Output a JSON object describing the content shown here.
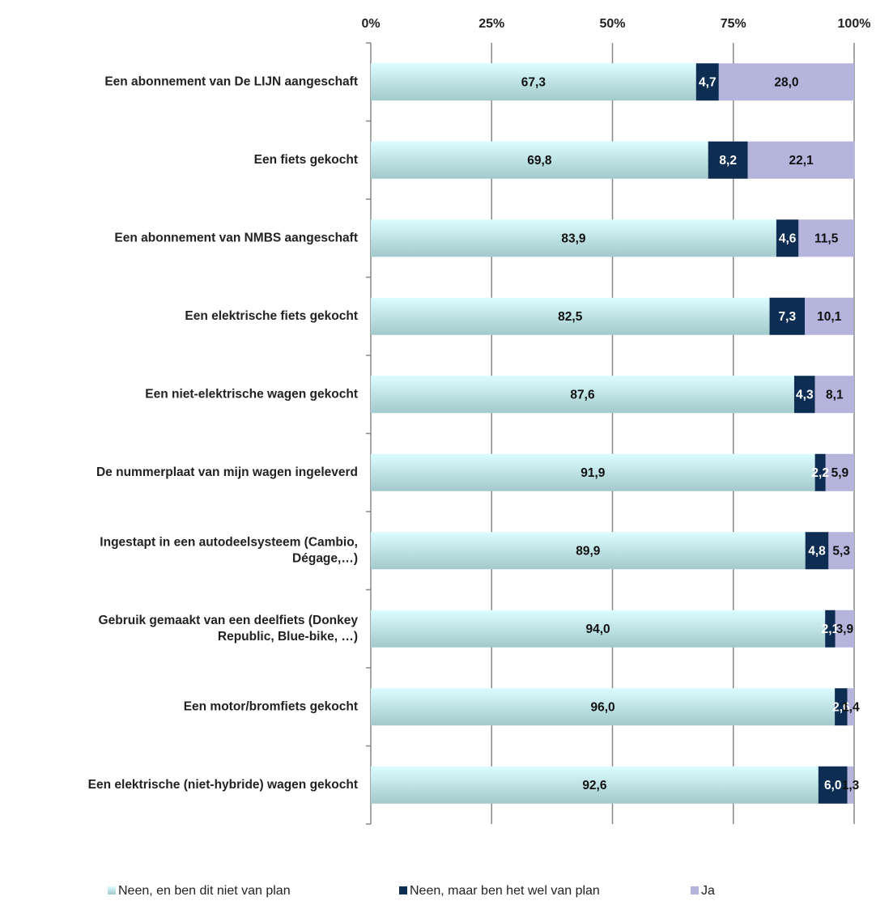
{
  "chart_data": {
    "type": "stacked-barh",
    "categories": [
      "Een abonnement van De LIJN aangeschaft",
      "Een fiets gekocht",
      "Een abonnement van NMBS aangeschaft",
      "Een elektrische fiets gekocht",
      "Een niet-elektrische wagen gekocht",
      "De nummerplaat van mijn wagen ingeleverd",
      "Ingestapt in een autodeelsysteem (Cambio,\nDégage,…)",
      "Gebruik gemaakt van een deelfiets (Donkey\nRepublic, Blue-bike, …)",
      "Een motor/bromfiets gekocht",
      "Een elektrische (niet-hybride) wagen gekocht"
    ],
    "series": [
      {
        "name": "Neen, en ben dit niet van plan",
        "color": "#b8e3e6",
        "values": [
          67.3,
          69.8,
          83.9,
          82.5,
          87.6,
          91.9,
          89.9,
          94.0,
          96.0,
          92.6
        ],
        "value_labels": [
          "67,3",
          "69,8",
          "83,9",
          "82,5",
          "87,6",
          "91,9",
          "89,9",
          "94,0",
          "96,0",
          "92,6"
        ]
      },
      {
        "name": "Neen, maar ben het wel van plan",
        "color": "#0d2d52",
        "values": [
          4.7,
          8.2,
          4.6,
          7.3,
          4.3,
          2.2,
          4.8,
          2.1,
          2.6,
          6.0
        ],
        "value_labels": [
          "4,7",
          "8,2",
          "4,6",
          "7,3",
          "4,3",
          "2,2",
          "4,8",
          "2,1",
          "2,6",
          "6,0"
        ]
      },
      {
        "name": "Ja",
        "color": "#b4b4dc",
        "values": [
          28.0,
          22.1,
          11.5,
          10.1,
          8.1,
          5.9,
          5.3,
          3.9,
          1.4,
          1.3
        ],
        "value_labels": [
          "28,0",
          "22,1",
          "11,5",
          "10,1",
          "8,1",
          "5,9",
          "5,3",
          "3,9",
          "1,4",
          "1,3"
        ]
      }
    ],
    "xlim": [
      0,
      100
    ],
    "xticks": [
      {
        "value": 0,
        "label": "0%"
      },
      {
        "value": 25,
        "label": "25%"
      },
      {
        "value": 50,
        "label": "50%"
      },
      {
        "value": 75,
        "label": "75%"
      },
      {
        "value": 100,
        "label": "100%"
      }
    ],
    "grid": true,
    "legend": "bottom"
  }
}
